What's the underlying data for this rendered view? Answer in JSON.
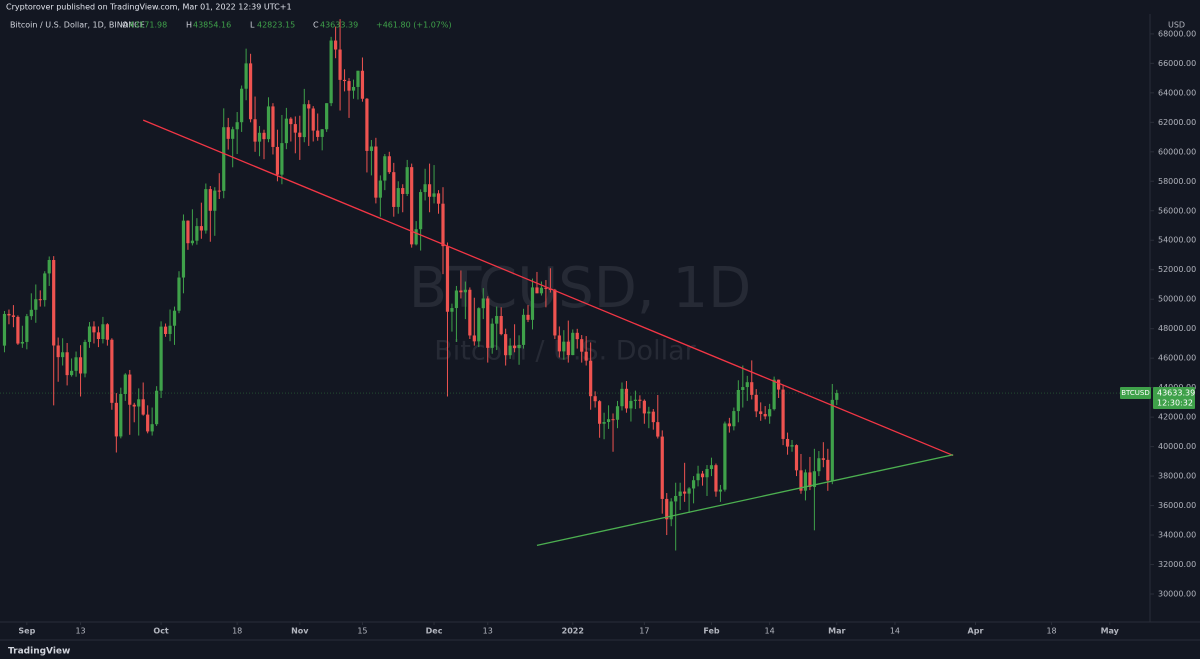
{
  "chart_data": {
    "type": "candlestick",
    "publisher": "Cryptorover published on TradingView.com, Mar 01, 2022 12:39 UTC+1",
    "symbol": "Bitcoin / U.S. Dollar, 1D, BINANCE",
    "ohlc_labels": [
      "O",
      "H",
      "L",
      "C"
    ],
    "change": "+461.80 (+1.07%)",
    "currency": "USD",
    "watermark": "BTCUSD, 1D",
    "watermark_subtitle": "Bitcoin / U.S. Dollar",
    "ticker": "BTCUSD",
    "countdown": "12:30:32",
    "footer": "TradingView",
    "up_color": "#3fa14a",
    "down_color": "#ef5350",
    "x": [
      "2021-08-27",
      "2021-08-28",
      "2021-08-29",
      "2021-08-30",
      "2021-08-31",
      "2021-09-01",
      "2021-09-02",
      "2021-09-03",
      "2021-09-04",
      "2021-09-05",
      "2021-09-06",
      "2021-09-07",
      "2021-09-08",
      "2021-09-09",
      "2021-09-10",
      "2021-09-11",
      "2021-09-12",
      "2021-09-13",
      "2021-09-14",
      "2021-09-15",
      "2021-09-16",
      "2021-09-17",
      "2021-09-18",
      "2021-09-19",
      "2021-09-20",
      "2021-09-21",
      "2021-09-22",
      "2021-09-23",
      "2021-09-24",
      "2021-09-25",
      "2021-09-26",
      "2021-09-27",
      "2021-09-28",
      "2021-09-29",
      "2021-09-30",
      "2021-10-01",
      "2021-10-02",
      "2021-10-03",
      "2021-10-04",
      "2021-10-05",
      "2021-10-06",
      "2021-10-07",
      "2021-10-08",
      "2021-10-09",
      "2021-10-10",
      "2021-10-11",
      "2021-10-12",
      "2021-10-13",
      "2021-10-14",
      "2021-10-15",
      "2021-10-16",
      "2021-10-17",
      "2021-10-18",
      "2021-10-19",
      "2021-10-20",
      "2021-10-21",
      "2021-10-22",
      "2021-10-23",
      "2021-10-24",
      "2021-10-25",
      "2021-10-26",
      "2021-10-27",
      "2021-10-28",
      "2021-10-29",
      "2021-10-30",
      "2021-10-31",
      "2021-11-01",
      "2021-11-02",
      "2021-11-03",
      "2021-11-04",
      "2021-11-05",
      "2021-11-06",
      "2021-11-07",
      "2021-11-08",
      "2021-11-09",
      "2021-11-10",
      "2021-11-11",
      "2021-11-12",
      "2021-11-13",
      "2021-11-14",
      "2021-11-15",
      "2021-11-16",
      "2021-11-17",
      "2021-11-18",
      "2021-11-19",
      "2021-11-20",
      "2021-11-21",
      "2021-11-22",
      "2021-11-23",
      "2021-11-24",
      "2021-11-25",
      "2021-11-26",
      "2021-11-27",
      "2021-11-28",
      "2021-11-29",
      "2021-11-30",
      "2021-12-01",
      "2021-12-02",
      "2021-12-03",
      "2021-12-04",
      "2021-12-05",
      "2021-12-06",
      "2021-12-07",
      "2021-12-08",
      "2021-12-09",
      "2021-12-10",
      "2021-12-11",
      "2021-12-12",
      "2021-12-13",
      "2021-12-14",
      "2021-12-15",
      "2021-12-16",
      "2021-12-17",
      "2021-12-18",
      "2021-12-19",
      "2021-12-20",
      "2021-12-21",
      "2021-12-22",
      "2021-12-23",
      "2021-12-24",
      "2021-12-25",
      "2021-12-26",
      "2021-12-27",
      "2021-12-28",
      "2021-12-29",
      "2021-12-30",
      "2021-12-31",
      "2022-01-01",
      "2022-01-02",
      "2022-01-03",
      "2022-01-04",
      "2022-01-05",
      "2022-01-06",
      "2022-01-07",
      "2022-01-08",
      "2022-01-09",
      "2022-01-10",
      "2022-01-11",
      "2022-01-12",
      "2022-01-13",
      "2022-01-14",
      "2022-01-15",
      "2022-01-16",
      "2022-01-17",
      "2022-01-18",
      "2022-01-19",
      "2022-01-20",
      "2022-01-21",
      "2022-01-22",
      "2022-01-23",
      "2022-01-24",
      "2022-01-25",
      "2022-01-26",
      "2022-01-27",
      "2022-01-28",
      "2022-01-29",
      "2022-01-30",
      "2022-01-31",
      "2022-02-01",
      "2022-02-02",
      "2022-02-03",
      "2022-02-04",
      "2022-02-05",
      "2022-02-06",
      "2022-02-07",
      "2022-02-08",
      "2022-02-09",
      "2022-02-10",
      "2022-02-11",
      "2022-02-12",
      "2022-02-13",
      "2022-02-14",
      "2022-02-15",
      "2022-02-16",
      "2022-02-17",
      "2022-02-18",
      "2022-02-19",
      "2022-02-20",
      "2022-02-21",
      "2022-02-22",
      "2022-02-23",
      "2022-02-24",
      "2022-02-25",
      "2022-02-26",
      "2022-02-27",
      "2022-02-28",
      "2022-03-01"
    ],
    "open": [
      46850,
      49000,
      48900,
      48800,
      46990,
      47100,
      48850,
      49280,
      50000,
      49940,
      51750,
      52660,
      46860,
      46070,
      46400,
      44850,
      45140,
      46060,
      44960,
      47100,
      48150,
      47750,
      47300,
      48300,
      47250,
      42970,
      40690,
      43570,
      44890,
      42840,
      42720,
      43210,
      42170,
      41030,
      41520,
      43790,
      48140,
      47640,
      48200,
      49220,
      51470,
      55330,
      53800,
      53970,
      54960,
      54660,
      57470,
      56000,
      57370,
      57350,
      61670,
      60880,
      61530,
      62010,
      64280,
      66000,
      62210,
      60690,
      61290,
      60860,
      63080,
      60330,
      58450,
      60590,
      62250,
      61880,
      61300,
      61000,
      63230,
      62940,
      61440,
      61010,
      61530,
      63300,
      67550,
      66940,
      64880,
      64800,
      64150,
      64400,
      65500,
      63600,
      60060,
      60360,
      56890,
      58050,
      59700,
      58620,
      56260,
      57540,
      57140,
      58960,
      53720,
      54750,
      57270,
      57800,
      56950,
      57180,
      56480,
      53600,
      49150,
      49400,
      50590,
      50470,
      50640,
      47540,
      47140,
      49390,
      50050,
      46700,
      48340,
      48860,
      47630,
      46200,
      46850,
      46680,
      46900,
      48940,
      48600,
      50800,
      50400,
      50780,
      50700,
      50640,
      47540,
      46460,
      47120,
      46210,
      47720,
      47290,
      46440,
      45830,
      43420,
      43080,
      41550,
      41670,
      41860,
      41820,
      42740,
      43920,
      42590,
      43100,
      43180,
      43110,
      42250,
      42370,
      41660,
      40680,
      36450,
      35070,
      36280,
      36650,
      36950,
      36810,
      37160,
      37720,
      38170,
      37920,
      38480,
      38740,
      36950,
      37080,
      41570,
      41380,
      42410,
      43840,
      44040,
      44370,
      43510,
      42390,
      42210,
      42050,
      42540,
      44540,
      43870,
      40520,
      40000,
      40100,
      38390,
      37010,
      38250,
      37260,
      38330,
      39210,
      39100,
      37700,
      43171.98
    ],
    "high": [
      49200,
      49300,
      49600,
      48900,
      48200,
      49000,
      50400,
      51000,
      50600,
      51900,
      52900,
      52920,
      47400,
      47350,
      47030,
      45980,
      46450,
      46880,
      47250,
      48450,
      48500,
      48150,
      48800,
      48370,
      47350,
      43630,
      44000,
      44980,
      45200,
      42970,
      43950,
      44350,
      42800,
      42650,
      44100,
      48500,
      48350,
      49300,
      49500,
      51900,
      55750,
      55350,
      56100,
      55500,
      56550,
      57850,
      57680,
      57600,
      58550,
      62950,
      62300,
      61700,
      62700,
      64500,
      67000,
      66650,
      63750,
      61750,
      61500,
      63700,
      63300,
      61500,
      62500,
      62980,
      62350,
      62400,
      62450,
      64270,
      63500,
      63100,
      62600,
      61550,
      63300,
      67800,
      68500,
      69000,
      65600,
      65000,
      64900,
      65500,
      66400,
      63650,
      60800,
      60950,
      58400,
      59850,
      60000,
      59250,
      58000,
      57800,
      59450,
      59200,
      55300,
      57450,
      58850,
      59200,
      59100,
      57400,
      57600,
      53850,
      49700,
      50900,
      51950,
      51200,
      50800,
      50100,
      49450,
      50750,
      50200,
      48700,
      49500,
      49450,
      48000,
      47350,
      48300,
      47550,
      49350,
      49600,
      51400,
      51850,
      51200,
      51300,
      52100,
      50700,
      48150,
      47900,
      48550,
      47950,
      47990,
      47570,
      47500,
      47070,
      43750,
      43150,
      42300,
      42800,
      42250,
      43100,
      44350,
      44450,
      43450,
      43800,
      43480,
      43200,
      42700,
      42550,
      43500,
      41100,
      36850,
      36500,
      37550,
      37550,
      38900,
      37250,
      38000,
      38700,
      38350,
      38750,
      39250,
      38850,
      37400,
      41700,
      41950,
      42650,
      44500,
      45500,
      44800,
      45850,
      43900,
      43000,
      42750,
      42900,
      44750,
      44550,
      44200,
      40950,
      40450,
      40150,
      39500,
      38450,
      39300,
      39850,
      39700,
      40300,
      39850,
      44250,
      43854.16
    ],
    "low": [
      46400,
      48300,
      48100,
      46900,
      46700,
      46600,
      48600,
      48400,
      49500,
      49500,
      50900,
      42800,
      44400,
      45500,
      44150,
      44750,
      44740,
      43400,
      44700,
      46700,
      47000,
      46750,
      47000,
      46850,
      42500,
      39600,
      40560,
      43100,
      40800,
      41650,
      40750,
      42100,
      40900,
      40750,
      41400,
      43300,
      47450,
      47150,
      46900,
      49050,
      50400,
      53350,
      53650,
      53700,
      54100,
      54450,
      53900,
      54300,
      56800,
      56850,
      60150,
      58950,
      59850,
      61350,
      63500,
      62000,
      60000,
      59700,
      59500,
      60650,
      59820,
      58000,
      57800,
      60180,
      60700,
      59900,
      59450,
      60650,
      60400,
      60700,
      60750,
      60100,
      61350,
      63100,
      66350,
      62800,
      64100,
      62300,
      63600,
      63550,
      63400,
      58600,
      58400,
      56500,
      55600,
      57400,
      58500,
      55600,
      55800,
      55900,
      57000,
      53500,
      53650,
      53300,
      56700,
      55900,
      56500,
      55800,
      51700,
      43400,
      47800,
      47100,
      50050,
      48650,
      47300,
      46850,
      46750,
      48650,
      45700,
      46300,
      46550,
      47550,
      45500,
      45950,
      46400,
      45550,
      46650,
      48450,
      47950,
      50400,
      50250,
      49450,
      50450,
      47300,
      46050,
      45900,
      45700,
      46200,
      46650,
      45700,
      45500,
      42500,
      42650,
      40600,
      40500,
      41200,
      39650,
      41250,
      42450,
      42300,
      41700,
      42550,
      42600,
      41550,
      41250,
      41150,
      40550,
      35450,
      34000,
      34600,
      32950,
      35700,
      36250,
      35500,
      36150,
      37300,
      37350,
      36650,
      38000,
      36600,
      36250,
      36950,
      40950,
      41100,
      41650,
      42650,
      43100,
      43200,
      42000,
      41750,
      41850,
      41550,
      42450,
      43300,
      40100,
      39450,
      39650,
      38000,
      36800,
      36350,
      37050,
      34320,
      38000,
      38600,
      37000,
      37450,
      42823.15
    ],
    "close": [
      49000,
      48900,
      48800,
      46990,
      47100,
      48850,
      49280,
      50000,
      49940,
      51750,
      52660,
      46860,
      46070,
      46400,
      44850,
      45140,
      46060,
      44960,
      47100,
      48150,
      47750,
      47300,
      48300,
      47250,
      42970,
      40690,
      43570,
      44890,
      42840,
      42720,
      43210,
      42170,
      41030,
      41520,
      43790,
      48140,
      47640,
      48200,
      49220,
      51470,
      55330,
      53800,
      53970,
      54960,
      54660,
      57470,
      56000,
      57370,
      57350,
      61670,
      60880,
      61530,
      62010,
      64280,
      66000,
      62210,
      60690,
      61290,
      60860,
      63080,
      60330,
      58450,
      60590,
      62250,
      61880,
      61300,
      61000,
      63230,
      62940,
      61440,
      61010,
      61530,
      63300,
      67550,
      66940,
      64880,
      64800,
      64150,
      64400,
      65500,
      63600,
      60060,
      60360,
      56890,
      58050,
      59700,
      58620,
      56260,
      57540,
      57140,
      58960,
      53720,
      54750,
      57270,
      57800,
      56950,
      57180,
      56480,
      53600,
      49150,
      49400,
      50590,
      50470,
      50640,
      47540,
      47140,
      49390,
      50050,
      46700,
      48340,
      48860,
      47630,
      46200,
      46850,
      46680,
      46900,
      48940,
      48600,
      50800,
      50400,
      50780,
      50700,
      50640,
      47540,
      46460,
      47120,
      46210,
      47720,
      47290,
      46440,
      45830,
      43420,
      43080,
      41550,
      41670,
      41860,
      41820,
      42740,
      43920,
      42590,
      43100,
      43180,
      43110,
      42250,
      42370,
      41660,
      40680,
      36450,
      35070,
      36280,
      36650,
      36950,
      36810,
      37160,
      37720,
      38170,
      37920,
      38480,
      38740,
      36950,
      37080,
      41570,
      41380,
      42410,
      43840,
      44040,
      44370,
      43510,
      42390,
      42210,
      42050,
      42540,
      44540,
      43870,
      40520,
      40000,
      40100,
      38390,
      37010,
      38250,
      37260,
      38330,
      39210,
      39100,
      37700,
      43170,
      43633.39
    ],
    "trendlines": [
      {
        "color": "#f23645",
        "start": [
          "2021-09-27",
          62150
        ],
        "end": [
          "2022-03-27",
          39400
        ]
      },
      {
        "color": "#4caf50",
        "start": [
          "2021-12-24",
          33300
        ],
        "end": [
          "2022-03-27",
          39450
        ]
      }
    ],
    "xlim": [
      "2021-08-26",
      "2022-05-10"
    ],
    "xticks": [
      {
        "value": "2021-09-01",
        "label": "Sep"
      },
      {
        "value": "2021-09-13",
        "label": "13"
      },
      {
        "value": "2021-10-01",
        "label": "Oct"
      },
      {
        "value": "2021-10-18",
        "label": "18"
      },
      {
        "value": "2021-11-01",
        "label": "Nov"
      },
      {
        "value": "2021-11-15",
        "label": "15"
      },
      {
        "value": "2021-12-01",
        "label": "Dec"
      },
      {
        "value": "2021-12-13",
        "label": "13"
      },
      {
        "value": "2022-01-01",
        "label": "2022"
      },
      {
        "value": "2022-01-17",
        "label": "17"
      },
      {
        "value": "2022-02-01",
        "label": "Feb"
      },
      {
        "value": "2022-02-14",
        "label": "14"
      },
      {
        "value": "2022-03-01",
        "label": "Mar"
      },
      {
        "value": "2022-03-14",
        "label": "14"
      },
      {
        "value": "2022-04-01",
        "label": "Apr"
      },
      {
        "value": "2022-04-18",
        "label": "18"
      },
      {
        "value": "2022-05-01",
        "label": "May"
      }
    ],
    "ylim": [
      28100,
      69350
    ],
    "yticks": [
      {
        "value": 30000,
        "label": "30000.00"
      },
      {
        "value": 32000,
        "label": "32000.00"
      },
      {
        "value": 34000,
        "label": "34000.00"
      },
      {
        "value": 36000,
        "label": "36000.00"
      },
      {
        "value": 38000,
        "label": "38000.00"
      },
      {
        "value": 40000,
        "label": "40000.00"
      },
      {
        "value": 42000,
        "label": "42000.00"
      },
      {
        "value": 44000,
        "label": "44000.00"
      },
      {
        "value": 46000,
        "label": "46000.00"
      },
      {
        "value": 48000,
        "label": "48000.00"
      },
      {
        "value": 50000,
        "label": "50000.00"
      },
      {
        "value": 52000,
        "label": "52000.00"
      },
      {
        "value": 54000,
        "label": "54000.00"
      },
      {
        "value": 56000,
        "label": "56000.00"
      },
      {
        "value": 58000,
        "label": "58000.00"
      },
      {
        "value": 60000,
        "label": "60000.00"
      },
      {
        "value": 62000,
        "label": "62000.00"
      },
      {
        "value": 64000,
        "label": "64000.00"
      },
      {
        "value": 66000,
        "label": "66000.00"
      },
      {
        "value": 68000,
        "label": "68000.00"
      }
    ],
    "grid": false
  }
}
